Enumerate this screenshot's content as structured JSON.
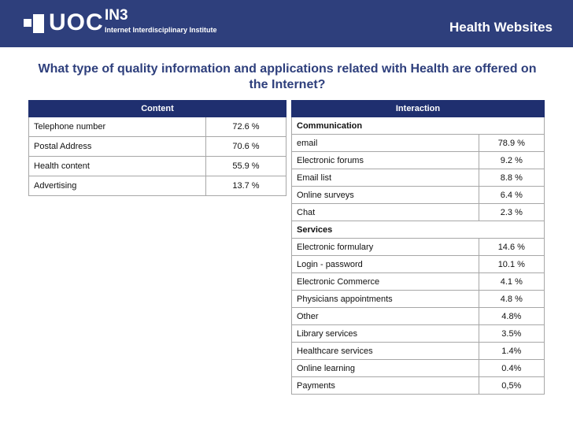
{
  "header": {
    "logo_uoc": "UOC",
    "logo_in3": "IN3",
    "logo_sub": "Internet Interdisciplinary Institute",
    "title": "Health Websites"
  },
  "question": "What type of quality information and applications related with Health are offered on the Internet?",
  "content_table": {
    "header": "Content",
    "rows": [
      {
        "label": "Telephone number",
        "value": "72.6 %"
      },
      {
        "label": "Postal Address",
        "value": "70.6 %"
      },
      {
        "label": "Health content",
        "value": "55.9 %"
      },
      {
        "label": "Advertising",
        "value": "13.7 %"
      }
    ]
  },
  "interaction_table": {
    "header": "Interaction",
    "communication_label": "Communication",
    "communication_rows": [
      {
        "label": "email",
        "value": "78.9 %"
      },
      {
        "label": "Electronic forums",
        "value": "9.2 %"
      },
      {
        "label": "Email list",
        "value": "8.8 %"
      },
      {
        "label": "Online surveys",
        "value": "6.4 %"
      },
      {
        "label": "Chat",
        "value": "2.3 %"
      }
    ],
    "services_label": "Services",
    "services_rows": [
      {
        "label": "Electronic formulary",
        "value": "14.6 %"
      },
      {
        "label": "Login - password",
        "value": "10.1 %"
      },
      {
        "label": "Electronic Commerce",
        "value": "4.1 %"
      },
      {
        "label": "Physicians appointments",
        "value": "4.8 %"
      },
      {
        "label": "Other",
        "value": "4.8%"
      },
      {
        "label": "Library services",
        "value": "3.5%"
      },
      {
        "label": "Healthcare services",
        "value": "1.4%"
      },
      {
        "label": "Online learning",
        "value": "0.4%"
      },
      {
        "label": "Payments",
        "value": "0,5%"
      }
    ]
  },
  "colors": {
    "header_bg": "#2e3f7c",
    "table_header_bg": "#1f2f6f",
    "question_text": "#2e3f7c"
  }
}
